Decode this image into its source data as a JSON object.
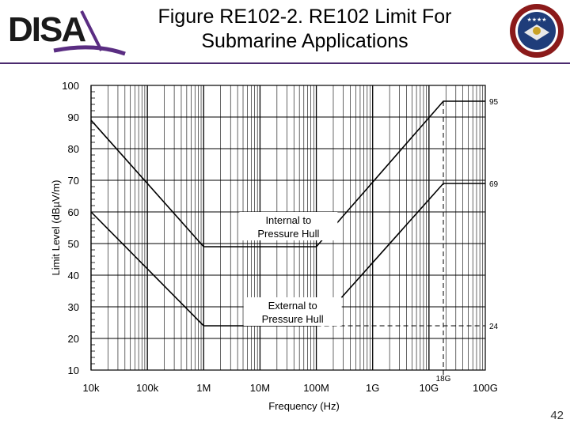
{
  "header": {
    "logo_text": "DISA",
    "title_line1": "Figure RE102-2. RE102 Limit For",
    "title_line2": "Submarine Applications",
    "seal_name": "dod-agency-seal"
  },
  "page_number": "42",
  "colors": {
    "accent": "#4b2a6e",
    "seal_outer": "#8b1a1a",
    "seal_inner": "#1f3d7a"
  },
  "chart_data": {
    "type": "line",
    "xscale": "log",
    "xlabel": "Frequency (Hz)",
    "ylabel": "Limit Level (dBµV/m)",
    "xlim": [
      10000,
      100000000000
    ],
    "ylim": [
      10,
      100
    ],
    "grid": true,
    "xticks": [
      {
        "value": 10000,
        "label": "10k"
      },
      {
        "value": 100000,
        "label": "100k"
      },
      {
        "value": 1000000,
        "label": "1M"
      },
      {
        "value": 10000000,
        "label": "10M"
      },
      {
        "value": 100000000,
        "label": "100M"
      },
      {
        "value": 1000000000,
        "label": "1G"
      },
      {
        "value": 10000000000,
        "label": "10G"
      },
      {
        "value": 100000000000,
        "label": "100G"
      }
    ],
    "yticks": [
      10,
      20,
      30,
      40,
      50,
      60,
      70,
      80,
      90,
      100
    ],
    "series": [
      {
        "name": "Internal to Pressure Hull",
        "x": [
          10000,
          1000000,
          100000000,
          18000000000,
          100000000000
        ],
        "y": [
          89,
          49,
          49,
          95,
          95
        ]
      },
      {
        "name": "External to Pressure Hull",
        "x": [
          10000,
          1000000,
          100000000,
          18000000000,
          100000000000
        ],
        "y": [
          60,
          24,
          24,
          69,
          69
        ]
      }
    ],
    "annotations": [
      {
        "text": "95",
        "x": 100000000000,
        "y": 95
      },
      {
        "text": "69",
        "x": 100000000000,
        "y": 69
      },
      {
        "text": "24",
        "x": 100000000000,
        "y": 24
      },
      {
        "text": "18G",
        "x": 18000000000,
        "y": 10
      }
    ],
    "series_labels": [
      {
        "line1": "Internal to",
        "line2": "Pressure Hull"
      },
      {
        "line1": "External to",
        "line2": "Pressure Hull"
      }
    ]
  }
}
